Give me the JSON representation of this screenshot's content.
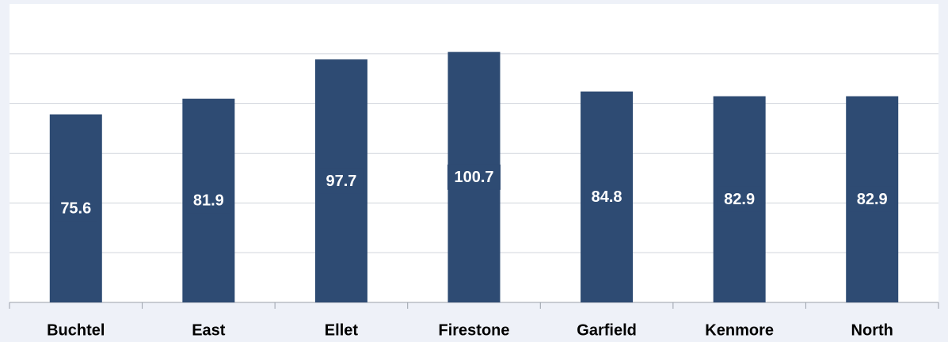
{
  "chart_data": {
    "type": "bar",
    "categories": [
      "Buchtel",
      "East",
      "Ellet",
      "Firestone",
      "Garfield",
      "Kenmore",
      "North"
    ],
    "values": [
      75.6,
      81.9,
      97.7,
      100.7,
      84.8,
      82.9,
      82.9
    ],
    "color": "#2e4b73",
    "ylim": [
      0,
      120
    ],
    "yticks": [
      0,
      20,
      40,
      60,
      80,
      100
    ],
    "grid": true
  }
}
